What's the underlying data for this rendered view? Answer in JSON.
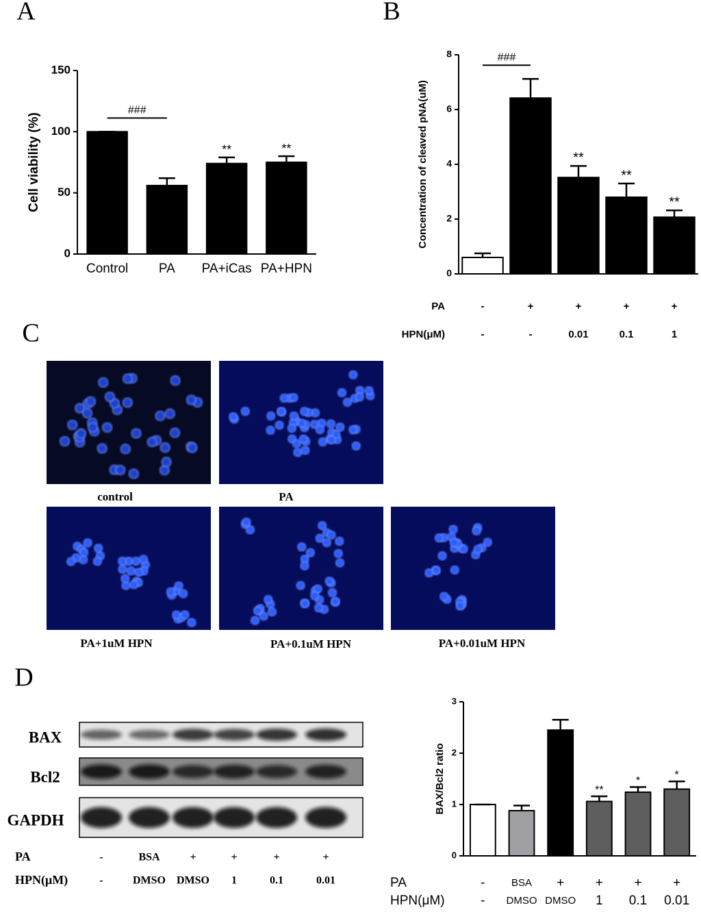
{
  "panel_labels": [
    "A",
    "B",
    "C",
    "D"
  ],
  "chart_data": [
    {
      "type": "bar",
      "ylabel": "Cell viability (%)",
      "categories": [
        "Control",
        "PA",
        "PA+iCas",
        "PA+HPN"
      ],
      "values": [
        100,
        56,
        74,
        75
      ],
      "errors": [
        0,
        6,
        5,
        5
      ],
      "color": "#000000",
      "ylim": [
        0,
        150
      ],
      "yticks": [
        0,
        50,
        100,
        150
      ],
      "bracket_label": "###",
      "significance": [
        null,
        null,
        "**",
        "**"
      ]
    },
    {
      "type": "bar",
      "ylabel": "Concentration of cleaved pNA(uM)",
      "values": [
        0.6,
        6.42,
        3.52,
        2.8,
        2.07
      ],
      "errors": [
        0.15,
        0.7,
        0.42,
        0.5,
        0.25
      ],
      "colors": [
        "#ffffff",
        "#000000",
        "#000000",
        "#000000",
        "#000000"
      ],
      "ylim": [
        0,
        8
      ],
      "yticks": [
        0,
        2,
        4,
        6,
        8
      ],
      "bracket_label": "###",
      "significance": [
        null,
        null,
        "**",
        "**",
        "**"
      ],
      "conditions": [
        {
          "name": "PA",
          "values": [
            "-",
            "+",
            "+",
            "+",
            "+"
          ]
        },
        {
          "name": "HPN(μM)",
          "values": [
            "-",
            "-",
            "0.01",
            "0.1",
            "1"
          ]
        }
      ]
    },
    {
      "type": "bar",
      "ylabel": "BAX/Bcl2 ratio",
      "values": [
        1,
        0.88,
        2.45,
        1.06,
        1.24,
        1.3
      ],
      "errors": [
        0,
        0.1,
        0.2,
        0.1,
        0.1,
        0.15
      ],
      "colors": [
        "#ffffff",
        "#a0a0a4",
        "#000000",
        "#5e5e5e",
        "#5e5e5e",
        "#5e5e5e"
      ],
      "ylim": [
        0,
        3
      ],
      "yticks": [
        0,
        1,
        2,
        3
      ],
      "significance": [
        null,
        null,
        null,
        "**",
        "*",
        "*"
      ],
      "conditions": [
        {
          "name": "PA",
          "values": [
            "-",
            "BSA",
            "+",
            "+",
            "+",
            "+"
          ]
        },
        {
          "name": "HPN(μM)",
          "values": [
            "-",
            "DMSO",
            "DMSO",
            "1",
            "0.1",
            "0.01"
          ]
        }
      ]
    }
  ],
  "images": [
    {
      "caption": "control"
    },
    {
      "caption": "PA"
    },
    {
      "caption": "PA+1uM HPN"
    },
    {
      "caption": "PA+0.1uM HPN"
    },
    {
      "caption": "PA+0.01uM HPN"
    }
  ],
  "blot": {
    "rows": [
      "BAX",
      "Bcl2",
      "GAPDH"
    ],
    "conditions": [
      {
        "name": "PA",
        "values": [
          "-",
          "BSA",
          "+",
          "+",
          "+",
          "+"
        ]
      },
      {
        "name": "HPN(μM)",
        "values": [
          "-",
          "DMSO",
          "DMSO",
          "1",
          "0.1",
          "0.01"
        ]
      }
    ]
  }
}
